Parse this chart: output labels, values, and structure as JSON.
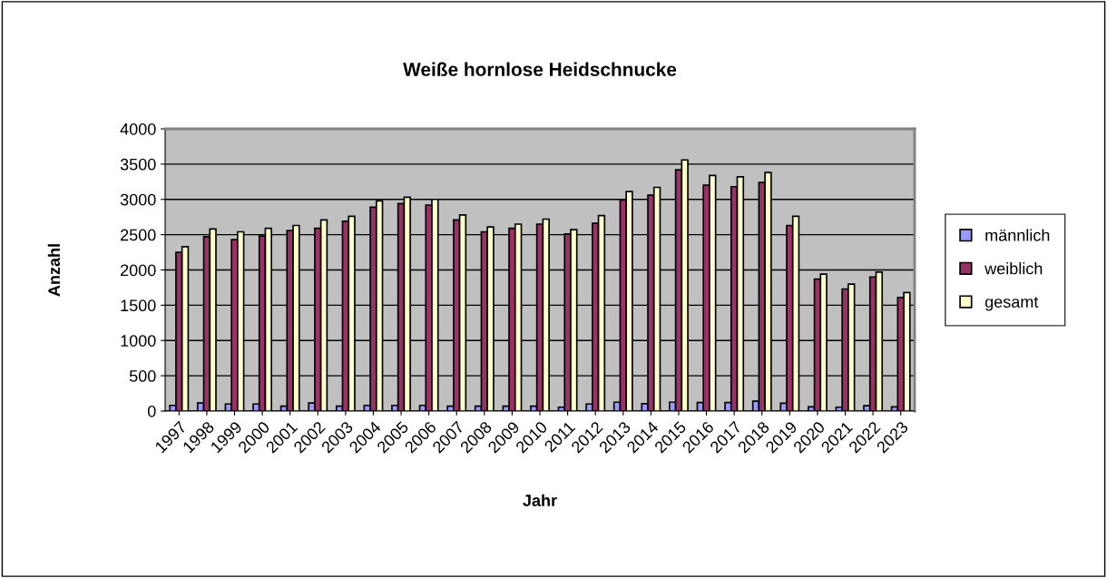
{
  "chart_data": {
    "type": "bar",
    "title": "Weiße hornlose Heidschnucke",
    "xlabel": "Jahr",
    "ylabel": "Anzahl",
    "categories": [
      "1997",
      "1998",
      "1999",
      "2000",
      "2001",
      "2002",
      "2003",
      "2004",
      "2005",
      "2006",
      "2007",
      "2008",
      "2009",
      "2010",
      "2011",
      "2012",
      "2013",
      "2014",
      "2015",
      "2016",
      "2017",
      "2018",
      "2019",
      "2020",
      "2021",
      "2022",
      "2023"
    ],
    "series": [
      {
        "name": "männlich",
        "color": "#9999ff",
        "values": [
          80,
          115,
          100,
          100,
          70,
          115,
          70,
          80,
          80,
          80,
          70,
          70,
          70,
          70,
          55,
          100,
          125,
          105,
          125,
          120,
          120,
          140,
          110,
          60,
          55,
          75,
          60
        ]
      },
      {
        "name": "weiblich",
        "color": "#993366",
        "values": [
          2250,
          2470,
          2430,
          2480,
          2560,
          2590,
          2690,
          2890,
          2940,
          2920,
          2710,
          2540,
          2590,
          2650,
          2510,
          2660,
          2990,
          3060,
          3420,
          3200,
          3180,
          3240,
          2630,
          1870,
          1730,
          1900,
          1610
        ]
      },
      {
        "name": "gesamt",
        "color": "#ffffcc",
        "values": [
          2330,
          2580,
          2540,
          2590,
          2630,
          2710,
          2760,
          2980,
          3030,
          3000,
          2780,
          2610,
          2650,
          2720,
          2570,
          2770,
          3110,
          3170,
          3560,
          3340,
          3320,
          3380,
          2760,
          1940,
          1800,
          1970,
          1680
        ]
      }
    ],
    "ylim": [
      0,
      4000
    ],
    "yticks": [
      0,
      500,
      1000,
      1500,
      2000,
      2500,
      3000,
      3500,
      4000
    ],
    "grid": "y",
    "legend": "right"
  }
}
